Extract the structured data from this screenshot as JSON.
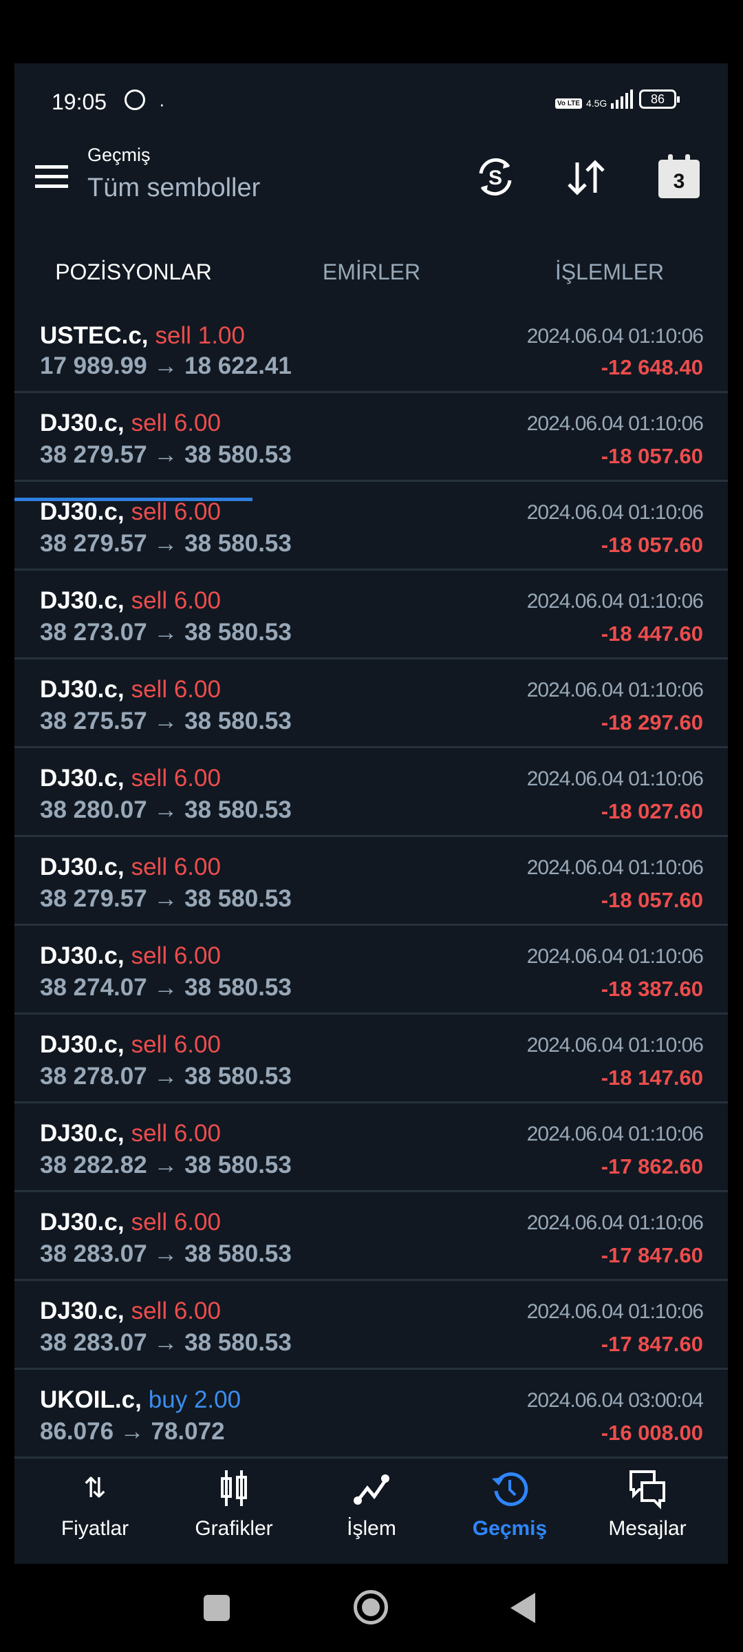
{
  "status_bar": {
    "time": "19:05",
    "dot": "·",
    "volte": "Vo LTE",
    "network": "4.5G",
    "battery": "86"
  },
  "header": {
    "subtitle": "Geçmiş",
    "title": "Tüm semboller",
    "calendar_day": "3"
  },
  "tabs": [
    {
      "label": "POZİSYONLAR",
      "active": true
    },
    {
      "label": "EMİRLER"
    },
    {
      "label": "İŞLEMLER"
    }
  ],
  "colors": {
    "sell": "#ee4d4d",
    "buy": "#3a8ef0",
    "loss": "#ee4d4d",
    "accent": "#2f7fe0"
  },
  "positions": [
    {
      "symbol": "USTEC.c,",
      "side": "sell",
      "volume": "sell 1.00",
      "prices": "17 989.99 → 18 622.41",
      "time": "2024.06.04 01:10:06",
      "profit": "-12 648.40"
    },
    {
      "symbol": "DJ30.c,",
      "side": "sell",
      "volume": "sell 6.00",
      "prices": "38 279.57 → 38 580.53",
      "time": "2024.06.04 01:10:06",
      "profit": "-18 057.60"
    },
    {
      "symbol": "DJ30.c,",
      "side": "sell",
      "volume": "sell 6.00",
      "prices": "38 279.57 → 38 580.53",
      "time": "2024.06.04 01:10:06",
      "profit": "-18 057.60"
    },
    {
      "symbol": "DJ30.c,",
      "side": "sell",
      "volume": "sell 6.00",
      "prices": "38 273.07 → 38 580.53",
      "time": "2024.06.04 01:10:06",
      "profit": "-18 447.60"
    },
    {
      "symbol": "DJ30.c,",
      "side": "sell",
      "volume": "sell 6.00",
      "prices": "38 275.57 → 38 580.53",
      "time": "2024.06.04 01:10:06",
      "profit": "-18 297.60"
    },
    {
      "symbol": "DJ30.c,",
      "side": "sell",
      "volume": "sell 6.00",
      "prices": "38 280.07 → 38 580.53",
      "time": "2024.06.04 01:10:06",
      "profit": "-18 027.60"
    },
    {
      "symbol": "DJ30.c,",
      "side": "sell",
      "volume": "sell 6.00",
      "prices": "38 279.57 → 38 580.53",
      "time": "2024.06.04 01:10:06",
      "profit": "-18 057.60"
    },
    {
      "symbol": "DJ30.c,",
      "side": "sell",
      "volume": "sell 6.00",
      "prices": "38 274.07 → 38 580.53",
      "time": "2024.06.04 01:10:06",
      "profit": "-18 387.60"
    },
    {
      "symbol": "DJ30.c,",
      "side": "sell",
      "volume": "sell 6.00",
      "prices": "38 278.07 → 38 580.53",
      "time": "2024.06.04 01:10:06",
      "profit": "-18 147.60"
    },
    {
      "symbol": "DJ30.c,",
      "side": "sell",
      "volume": "sell 6.00",
      "prices": "38 282.82 → 38 580.53",
      "time": "2024.06.04 01:10:06",
      "profit": "-17 862.60"
    },
    {
      "symbol": "DJ30.c,",
      "side": "sell",
      "volume": "sell 6.00",
      "prices": "38 283.07 → 38 580.53",
      "time": "2024.06.04 01:10:06",
      "profit": "-17 847.60"
    },
    {
      "symbol": "DJ30.c,",
      "side": "sell",
      "volume": "sell 6.00",
      "prices": "38 283.07 → 38 580.53",
      "time": "2024.06.04 01:10:06",
      "profit": "-17 847.60"
    },
    {
      "symbol": "UKOIL.c,",
      "side": "buy",
      "volume": "buy 2.00",
      "prices": "86.076 → 78.072",
      "time": "2024.06.04 03:00:04",
      "profit": "-16 008.00"
    }
  ],
  "bottom_nav": [
    {
      "label": "Fiyatlar",
      "icon": "quotes-arrows-icon"
    },
    {
      "label": "Grafikler",
      "icon": "candlestick-icon"
    },
    {
      "label": "İşlem",
      "icon": "trade-line-icon"
    },
    {
      "label": "Geçmiş",
      "icon": "history-icon",
      "active": true
    },
    {
      "label": "Mesajlar",
      "icon": "messages-icon"
    }
  ]
}
